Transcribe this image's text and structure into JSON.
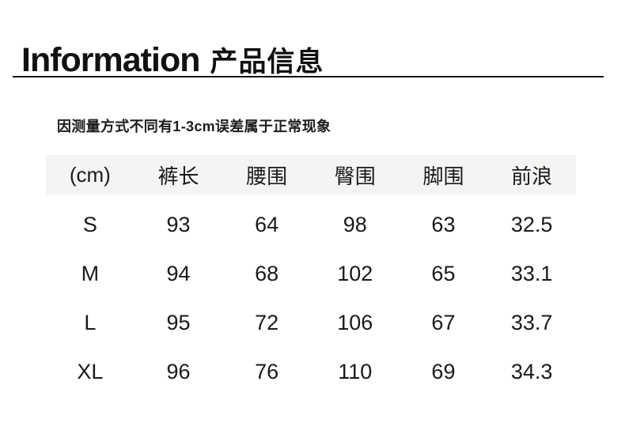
{
  "title": {
    "en": "Information",
    "zh": "产品信息"
  },
  "note": "因测量方式不同有1-3cm误差属于正常现象",
  "size_table": {
    "columns": [
      "(cm)",
      "裤长",
      "腰围",
      "臀围",
      "脚围",
      "前浪"
    ],
    "rows": [
      {
        "size": "S",
        "values": [
          "93",
          "64",
          "98",
          "63",
          "32.5"
        ]
      },
      {
        "size": "M",
        "values": [
          "94",
          "68",
          "102",
          "65",
          "33.1"
        ]
      },
      {
        "size": "L",
        "values": [
          "95",
          "72",
          "106",
          "67",
          "33.7"
        ]
      },
      {
        "size": "XL",
        "values": [
          "96",
          "76",
          "110",
          "69",
          "34.3"
        ]
      }
    ]
  },
  "colors": {
    "header_band": "#f4f4f2",
    "text": "#1a1a1a",
    "underline": "#111111"
  }
}
